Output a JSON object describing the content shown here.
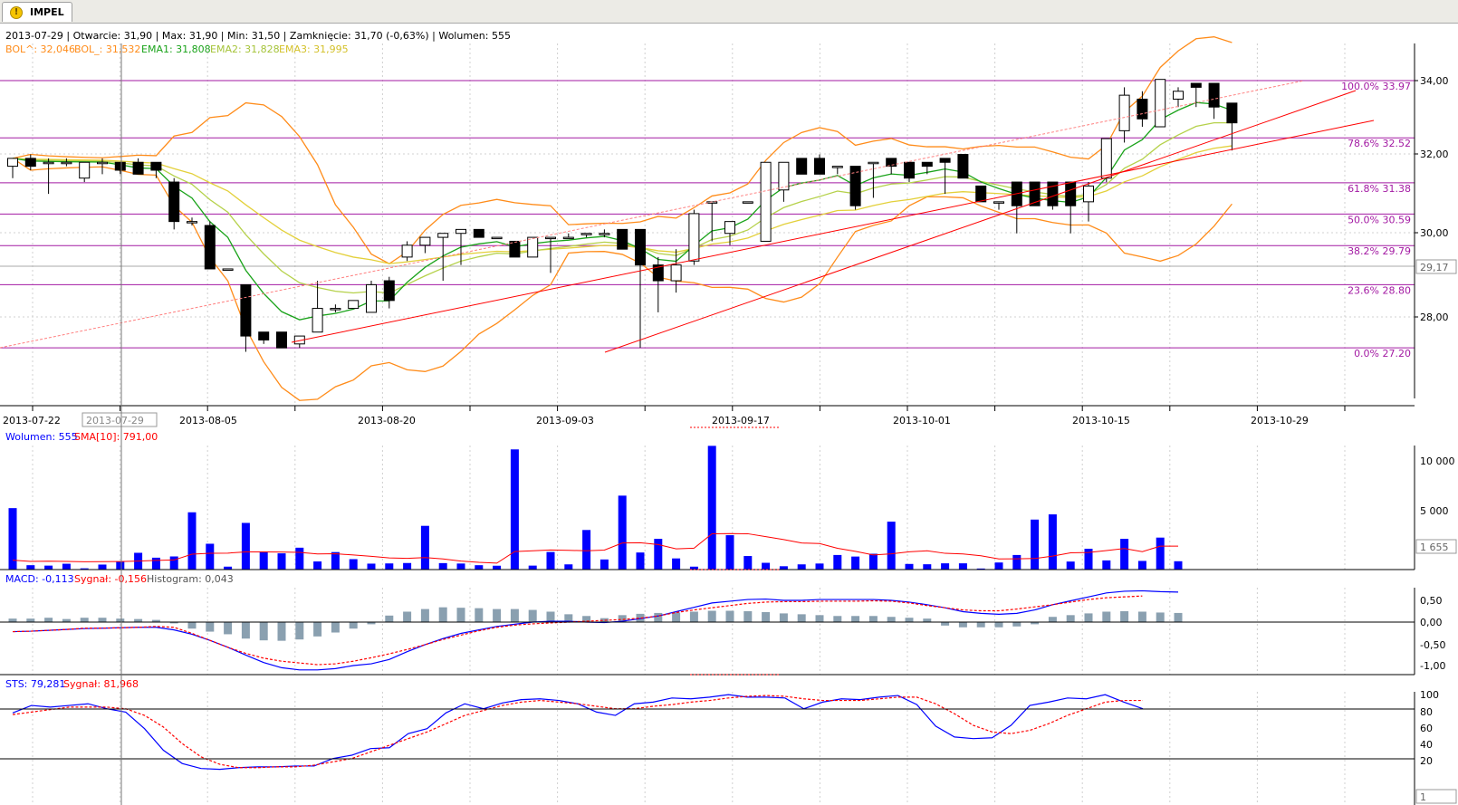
{
  "tab": {
    "label": "IMPEL",
    "icon": "warning-icon"
  },
  "colors": {
    "bol": "#ff8c1a",
    "ema1": "#1aa31a",
    "ema2": "#b5d14a",
    "ema3": "#e3d03a",
    "fib": "#a31aa3",
    "trend": "#ff0000",
    "volume": "#0000ff",
    "sma": "#ff0000",
    "macd": "#0000ff",
    "signal": "#ff0000",
    "histogram": "#8aa0b0"
  },
  "header": {
    "line1": "2013-07-29 | Otwarcie: 31,90 | Max: 31,90 | Min: 31,50 | Zamknięcie: 31,70 (-0,63%) | Wolumen: 555",
    "bol_up": "BOL^: 32,046",
    "bol_low": "BOL_: 31,532",
    "ema1": "EMA1: 31,808",
    "ema2": "EMA2: 31,828",
    "ema3": "EMA3: 31,995"
  },
  "price_axis": {
    "ticks": [
      "34,00",
      "32,00",
      "30,00",
      "28,00"
    ],
    "last_price": "29,17"
  },
  "fib_labels": [
    "100.0% 33.97",
    "78.6% 32.52",
    "61.8% 31.38",
    "50.0% 30.59",
    "38.2% 29.79",
    "23.6% 28.80",
    "0.0% 27.20"
  ],
  "date_axis": {
    "labels": [
      "2013-07-22",
      "2013-08-05",
      "2013-08-20",
      "2013-09-03",
      "2013-09-17",
      "2013-10-01",
      "2013-10-15",
      "2013-10-29"
    ],
    "cursor_date": "2013-07-29"
  },
  "volume_panel": {
    "legend_volume": "Wolumen: 555",
    "legend_sma": "SMA[10]: 791,00",
    "ticks": [
      "10 000",
      "5 000"
    ],
    "last_value": "1 655"
  },
  "macd_panel": {
    "legend_macd": "MACD: -0,113",
    "legend_signal": "Sygnał: -0,156",
    "legend_hist": "Histogram: 0,043",
    "ticks": [
      "0,50",
      "0,00",
      "-0,50",
      "-1,00"
    ]
  },
  "sts_panel": {
    "legend_sts": "STS: 79,281",
    "legend_signal": "Sygnał: 81,968",
    "ticks": [
      "100",
      "80",
      "60",
      "40",
      "20"
    ],
    "last_value": "1"
  },
  "chart_data": {
    "type": "candlestick",
    "symbol": "IMPEL",
    "price_range": [
      26.0,
      35.0
    ],
    "fib_levels": [
      33.97,
      32.52,
      31.38,
      30.59,
      29.79,
      28.8,
      27.2
    ],
    "candles": [
      {
        "o": 31.8,
        "h": 32.0,
        "l": 31.5,
        "c": 32.0
      },
      {
        "o": 32.0,
        "h": 32.1,
        "l": 31.7,
        "c": 31.8
      },
      {
        "o": 31.9,
        "h": 32.0,
        "l": 31.1,
        "c": 31.9
      },
      {
        "o": 31.9,
        "h": 32.0,
        "l": 31.8,
        "c": 31.9
      },
      {
        "o": 31.5,
        "h": 31.9,
        "l": 31.4,
        "c": 31.9
      },
      {
        "o": 31.9,
        "h": 32.0,
        "l": 31.6,
        "c": 31.9
      },
      {
        "o": 31.9,
        "h": 31.9,
        "l": 31.6,
        "c": 31.7
      },
      {
        "o": 31.9,
        "h": 32.0,
        "l": 31.6,
        "c": 31.6
      },
      {
        "o": 31.9,
        "h": 31.9,
        "l": 31.5,
        "c": 31.7
      },
      {
        "o": 31.4,
        "h": 31.5,
        "l": 30.2,
        "c": 30.4
      },
      {
        "o": 30.4,
        "h": 30.5,
        "l": 30.3,
        "c": 30.4
      },
      {
        "o": 30.3,
        "h": 30.4,
        "l": 29.2,
        "c": 29.2
      },
      {
        "o": 29.2,
        "h": 29.2,
        "l": 29.2,
        "c": 29.2
      },
      {
        "o": 28.8,
        "h": 28.8,
        "l": 27.1,
        "c": 27.5
      },
      {
        "o": 27.6,
        "h": 27.6,
        "l": 27.3,
        "c": 27.4
      },
      {
        "o": 27.6,
        "h": 27.6,
        "l": 27.2,
        "c": 27.2
      },
      {
        "o": 27.3,
        "h": 27.5,
        "l": 27.2,
        "c": 27.5
      },
      {
        "o": 27.6,
        "h": 28.9,
        "l": 27.6,
        "c": 28.2
      },
      {
        "o": 28.2,
        "h": 28.3,
        "l": 28.1,
        "c": 28.2
      },
      {
        "o": 28.2,
        "h": 28.4,
        "l": 28.2,
        "c": 28.4
      },
      {
        "o": 28.1,
        "h": 28.9,
        "l": 28.1,
        "c": 28.8
      },
      {
        "o": 28.9,
        "h": 29.0,
        "l": 28.2,
        "c": 28.4
      },
      {
        "o": 29.5,
        "h": 29.9,
        "l": 29.4,
        "c": 29.8
      },
      {
        "o": 29.8,
        "h": 30.0,
        "l": 29.6,
        "c": 30.0
      },
      {
        "o": 30.0,
        "h": 30.1,
        "l": 28.9,
        "c": 30.1
      },
      {
        "o": 30.1,
        "h": 30.2,
        "l": 29.3,
        "c": 30.2
      },
      {
        "o": 30.2,
        "h": 30.2,
        "l": 30.0,
        "c": 30.0
      },
      {
        "o": 30.0,
        "h": 30.0,
        "l": 30.0,
        "c": 30.0
      },
      {
        "o": 29.9,
        "h": 29.9,
        "l": 29.5,
        "c": 29.5
      },
      {
        "o": 29.5,
        "h": 30.0,
        "l": 29.5,
        "c": 30.0
      },
      {
        "o": 30.0,
        "h": 30.0,
        "l": 29.1,
        "c": 30.0
      },
      {
        "o": 30.0,
        "h": 30.1,
        "l": 30.0,
        "c": 30.0
      },
      {
        "o": 30.1,
        "h": 30.1,
        "l": 30.0,
        "c": 30.1
      },
      {
        "o": 30.1,
        "h": 30.2,
        "l": 30.0,
        "c": 30.1
      },
      {
        "o": 30.2,
        "h": 30.2,
        "l": 29.7,
        "c": 29.7
      },
      {
        "o": 30.2,
        "h": 30.2,
        "l": 27.2,
        "c": 29.3
      },
      {
        "o": 29.3,
        "h": 29.5,
        "l": 28.1,
        "c": 28.9
      },
      {
        "o": 28.9,
        "h": 29.7,
        "l": 28.6,
        "c": 29.3
      },
      {
        "o": 29.4,
        "h": 30.7,
        "l": 29.3,
        "c": 30.6
      },
      {
        "o": 30.9,
        "h": 30.9,
        "l": 29.9,
        "c": 30.9
      },
      {
        "o": 30.1,
        "h": 30.4,
        "l": 29.8,
        "c": 30.4
      },
      {
        "o": 30.9,
        "h": 30.9,
        "l": 30.9,
        "c": 30.9
      },
      {
        "o": 29.9,
        "h": 31.9,
        "l": 29.9,
        "c": 31.9
      },
      {
        "o": 31.2,
        "h": 31.9,
        "l": 30.9,
        "c": 31.9
      },
      {
        "o": 32.0,
        "h": 32.0,
        "l": 31.6,
        "c": 31.6
      },
      {
        "o": 32.0,
        "h": 32.1,
        "l": 31.6,
        "c": 31.6
      },
      {
        "o": 31.8,
        "h": 31.8,
        "l": 31.6,
        "c": 31.8
      },
      {
        "o": 31.8,
        "h": 31.8,
        "l": 30.7,
        "c": 30.8
      },
      {
        "o": 31.9,
        "h": 31.9,
        "l": 31.0,
        "c": 31.9
      },
      {
        "o": 32.0,
        "h": 32.0,
        "l": 31.6,
        "c": 31.8
      },
      {
        "o": 31.9,
        "h": 31.9,
        "l": 31.4,
        "c": 31.5
      },
      {
        "o": 31.9,
        "h": 31.9,
        "l": 31.6,
        "c": 31.8
      },
      {
        "o": 32.0,
        "h": 32.0,
        "l": 31.1,
        "c": 31.9
      },
      {
        "o": 32.1,
        "h": 32.1,
        "l": 31.5,
        "c": 31.5
      },
      {
        "o": 31.3,
        "h": 31.3,
        "l": 30.9,
        "c": 30.9
      },
      {
        "o": 30.9,
        "h": 30.9,
        "l": 30.7,
        "c": 30.9
      },
      {
        "o": 31.4,
        "h": 31.4,
        "l": 30.1,
        "c": 30.8
      },
      {
        "o": 31.4,
        "h": 31.4,
        "l": 30.8,
        "c": 30.8
      },
      {
        "o": 31.4,
        "h": 31.4,
        "l": 30.7,
        "c": 30.8
      },
      {
        "o": 31.4,
        "h": 31.4,
        "l": 30.1,
        "c": 30.8
      },
      {
        "o": 30.9,
        "h": 31.4,
        "l": 30.4,
        "c": 31.3
      },
      {
        "o": 31.5,
        "h": 32.5,
        "l": 31.4,
        "c": 32.5
      },
      {
        "o": 32.7,
        "h": 33.8,
        "l": 32.4,
        "c": 33.6
      },
      {
        "o": 33.5,
        "h": 33.7,
        "l": 32.8,
        "c": 33.0
      },
      {
        "o": 32.8,
        "h": 34.0,
        "l": 32.8,
        "c": 34.0
      },
      {
        "o": 33.5,
        "h": 33.8,
        "l": 33.3,
        "c": 33.7
      },
      {
        "o": 33.9,
        "h": 33.9,
        "l": 33.3,
        "c": 33.8
      },
      {
        "o": 33.9,
        "h": 33.9,
        "l": 33.0,
        "c": 33.3
      },
      {
        "o": 33.4,
        "h": 33.4,
        "l": 32.2,
        "c": 32.9
      }
    ],
    "volume": [
      5900,
      420,
      380,
      560,
      120,
      480,
      740,
      1610,
      1140,
      1260,
      5500,
      2480,
      280,
      4480,
      1650,
      1560,
      2100,
      780,
      1680,
      1000,
      570,
      590,
      630,
      4200,
      620,
      580,
      420,
      370,
      11540,
      380,
      1690,
      500,
      3800,
      970,
      7100,
      1640,
      2950,
      1070,
      280,
      11880,
      3300,
      1300,
      650,
      320,
      500,
      580,
      1400,
      1250,
      1520,
      4600,
      540,
      510,
      600,
      600,
      100,
      680,
      1400,
      4800,
      5300,
      770,
      2000,
      880,
      2950,
      830,
      3070,
      800
    ],
    "sma10": [
      900,
      780,
      800,
      780,
      750,
      760,
      770,
      820,
      880,
      920,
      1480,
      1560,
      1580,
      1700,
      1700,
      1680,
      1650,
      1500,
      1520,
      1400,
      1270,
      1120,
      1080,
      1150,
      1020,
      820,
      700,
      620,
      1730,
      1800,
      1880,
      1850,
      1800,
      1870,
      2550,
      2580,
      2400,
      1990,
      2050,
      3440,
      3460,
      3440,
      3160,
      2880,
      2550,
      2500,
      2040,
      1750,
      1400,
      1510,
      1710,
      1800,
      1560,
      1500,
      1330,
      1020,
      1030,
      1060,
      1290,
      1610,
      1640,
      1830,
      2020,
      1720,
      2250,
      2250
    ],
    "macd": [
      -0.22,
      -0.21,
      -0.19,
      -0.17,
      -0.15,
      -0.14,
      -0.13,
      -0.12,
      -0.12,
      -0.18,
      -0.28,
      -0.42,
      -0.58,
      -0.76,
      -0.93,
      -1.05,
      -1.1,
      -1.1,
      -1.07,
      -1.0,
      -0.96,
      -0.86,
      -0.68,
      -0.52,
      -0.38,
      -0.26,
      -0.18,
      -0.1,
      -0.05,
      0.0,
      0.02,
      0.02,
      0.0,
      -0.01,
      0.02,
      0.08,
      0.14,
      0.24,
      0.34,
      0.44,
      0.48,
      0.52,
      0.53,
      0.5,
      0.5,
      0.52,
      0.52,
      0.52,
      0.52,
      0.5,
      0.46,
      0.4,
      0.33,
      0.24,
      0.2,
      0.18,
      0.2,
      0.28,
      0.4,
      0.49,
      0.58,
      0.67,
      0.71,
      0.72,
      0.7,
      0.69
    ],
    "macd_signal": [
      -0.22,
      -0.21,
      -0.19,
      -0.17,
      -0.14,
      -0.14,
      -0.13,
      -0.12,
      -0.1,
      -0.12,
      -0.26,
      -0.42,
      -0.58,
      -0.72,
      -0.83,
      -0.9,
      -0.94,
      -0.98,
      -0.96,
      -0.9,
      -0.82,
      -0.73,
      -0.63,
      -0.52,
      -0.4,
      -0.3,
      -0.2,
      -0.12,
      -0.07,
      -0.04,
      -0.02,
      0.0,
      0.02,
      0.04,
      0.06,
      0.09,
      0.14,
      0.22,
      0.28,
      0.33,
      0.38,
      0.43,
      0.46,
      0.47,
      0.47,
      0.48,
      0.48,
      0.48,
      0.49,
      0.48,
      0.44,
      0.38,
      0.33,
      0.28,
      0.26,
      0.26,
      0.3,
      0.35,
      0.4,
      0.46,
      0.52,
      0.56,
      0.58,
      0.6
    ],
    "macd_hist": [
      0.08,
      0.08,
      0.1,
      0.07,
      0.1,
      0.1,
      0.08,
      0.07,
      0.05,
      -0.03,
      -0.15,
      -0.22,
      -0.28,
      -0.38,
      -0.42,
      -0.43,
      -0.4,
      -0.33,
      -0.24,
      -0.15,
      -0.05,
      0.15,
      0.24,
      0.3,
      0.34,
      0.33,
      0.32,
      0.3,
      0.3,
      0.28,
      0.24,
      0.18,
      0.14,
      0.09,
      0.16,
      0.19,
      0.21,
      0.22,
      0.24,
      0.26,
      0.26,
      0.25,
      0.23,
      0.2,
      0.18,
      0.16,
      0.14,
      0.14,
      0.14,
      0.12,
      0.1,
      0.08,
      -0.08,
      -0.12,
      -0.12,
      -0.12,
      -0.1,
      -0.05,
      0.12,
      0.16,
      0.2,
      0.24,
      0.25,
      0.24,
      0.22,
      0.21
    ],
    "sts": [
      75,
      84,
      82,
      84,
      86,
      80,
      76,
      56,
      30,
      14,
      8,
      7,
      9,
      10,
      10,
      11,
      11,
      20,
      24,
      32,
      33,
      50,
      56,
      75,
      86,
      80,
      87,
      91,
      92,
      90,
      86,
      76,
      72,
      86,
      88,
      93,
      92,
      94,
      97,
      94,
      94,
      93,
      80,
      88,
      92,
      91,
      94,
      96,
      85,
      59,
      46,
      44,
      45,
      60,
      84,
      88,
      93,
      92,
      97,
      88,
      80
    ],
    "sts_signal": [
      73,
      76,
      79,
      82,
      82,
      82,
      80,
      72,
      58,
      38,
      22,
      13,
      9,
      9,
      10,
      10,
      12,
      16,
      20,
      28,
      36,
      44,
      52,
      62,
      72,
      78,
      84,
      88,
      90,
      88,
      86,
      83,
      80,
      80,
      83,
      85,
      88,
      90,
      93,
      95,
      96,
      95,
      92,
      90,
      90,
      90,
      92,
      94,
      94,
      86,
      74,
      60,
      52,
      50,
      54,
      62,
      72,
      80,
      88,
      90,
      90
    ],
    "x_labels": [
      "2013-07-22",
      "2013-08-05",
      "2013-08-20",
      "2013-09-03",
      "2013-09-17",
      "2013-10-01",
      "2013-10-15",
      "2013-10-29"
    ],
    "legend": [
      "BOL^",
      "BOL_",
      "EMA1",
      "EMA2",
      "EMA3"
    ]
  }
}
